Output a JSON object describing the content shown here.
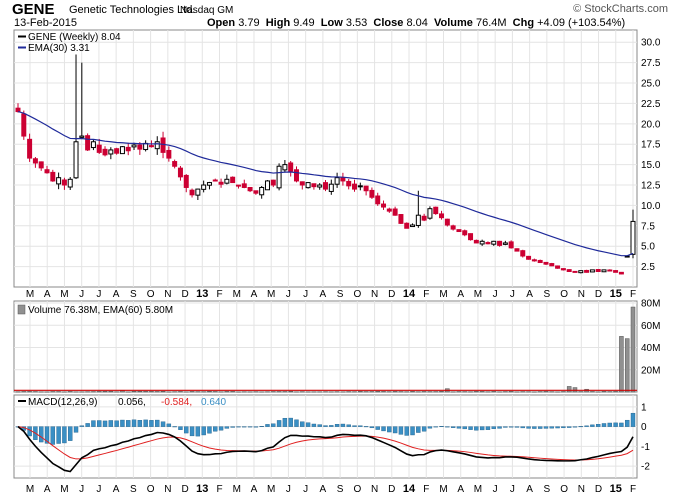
{
  "header": {
    "symbol": "GENE",
    "company": "Genetic Technologies Ltd.",
    "exchange": "Nasdaq GM",
    "brand": "© StockCharts.com",
    "date": "13-Feb-2015",
    "open_label": "Open",
    "open": "3.79",
    "high_label": "High",
    "high": "9.49",
    "low_label": "Low",
    "low": "3.53",
    "close_label": "Close",
    "close": "8.04",
    "volume_label": "Volume",
    "volume": "76.4M",
    "chg_label": "Chg",
    "chg": "+4.09 (+103.54%)"
  },
  "colors": {
    "up": "#000000",
    "down": "#cc0033",
    "ema": "#1f2a9a",
    "volume_bar": "#909090",
    "volume_baseline": "#cc0000",
    "macd_line": "#000000",
    "signal_line": "#e02020",
    "histogram": "#3a8fc4"
  },
  "chart_data": [
    {
      "type": "candlestick",
      "legend": [
        {
          "label": "GENE (Weekly) 8.04",
          "color": "#000000"
        },
        {
          "label": "EMA(30) 3.31",
          "color": "#1f2a9a"
        }
      ],
      "ylim": [
        0,
        31.5
      ],
      "yticks": [
        "2.5",
        "5.0",
        "7.5",
        "10.0",
        "12.5",
        "15.0",
        "17.5",
        "20.0",
        "22.5",
        "25.0",
        "27.5",
        "30.0"
      ],
      "xticks": [
        "M",
        "A",
        "M",
        "J",
        "J",
        "A",
        "S",
        "O",
        "N",
        "D",
        "13",
        "F",
        "M",
        "A",
        "M",
        "J",
        "J",
        "A",
        "S",
        "O",
        "N",
        "D",
        "14",
        "F",
        "M",
        "A",
        "M",
        "J",
        "J",
        "A",
        "S",
        "O",
        "N",
        "D",
        "15",
        "F"
      ],
      "close_anchors": [
        [
          0,
          21.5
        ],
        [
          1,
          18.5
        ],
        [
          2,
          15.8
        ],
        [
          3,
          15.2
        ],
        [
          4,
          14.6
        ],
        [
          5,
          14.0
        ],
        [
          6,
          13.0
        ],
        [
          7,
          13.4
        ],
        [
          8,
          12.5
        ],
        [
          9,
          13.2
        ],
        [
          10,
          17.8
        ],
        [
          11,
          18.5
        ],
        [
          12,
          16.8
        ],
        [
          13,
          17.8
        ],
        [
          14,
          16.5
        ],
        [
          15,
          16.2
        ],
        [
          16,
          16.8
        ],
        [
          17,
          16.4
        ],
        [
          18,
          17.2
        ],
        [
          19,
          16.7
        ],
        [
          20,
          17.4
        ],
        [
          21,
          16.9
        ],
        [
          22,
          17.6
        ],
        [
          23,
          17.2
        ],
        [
          24,
          17.8
        ],
        [
          25,
          16.5
        ],
        [
          26,
          15.8
        ],
        [
          27,
          14.8
        ],
        [
          28,
          13.5
        ],
        [
          29,
          12.2
        ],
        [
          30,
          11.3
        ],
        [
          31,
          12.0
        ],
        [
          32,
          12.5
        ],
        [
          33,
          12.8
        ],
        [
          34,
          13.1
        ],
        [
          35,
          12.6
        ],
        [
          36,
          13.2
        ],
        [
          37,
          12.8
        ],
        [
          38,
          12.4
        ],
        [
          39,
          12.2
        ],
        [
          40,
          11.8
        ],
        [
          41,
          11.5
        ],
        [
          42,
          12.2
        ],
        [
          43,
          13.0
        ],
        [
          44,
          12.5
        ],
        [
          45,
          14.8
        ],
        [
          46,
          15.0
        ],
        [
          47,
          14.2
        ],
        [
          48,
          13.0
        ],
        [
          49,
          12.5
        ],
        [
          50,
          12.8
        ],
        [
          51,
          12.3
        ],
        [
          52,
          12.5
        ],
        [
          53,
          12.0
        ],
        [
          54,
          12.6
        ],
        [
          55,
          13.4
        ],
        [
          56,
          13.0
        ],
        [
          57,
          12.4
        ],
        [
          58,
          12.0
        ],
        [
          59,
          12.4
        ],
        [
          60,
          11.8
        ],
        [
          61,
          11.0
        ],
        [
          62,
          10.2
        ],
        [
          63,
          9.8
        ],
        [
          64,
          9.3
        ],
        [
          65,
          8.8
        ],
        [
          66,
          7.8
        ],
        [
          67,
          7.2
        ],
        [
          68,
          7.6
        ],
        [
          69,
          8.8
        ],
        [
          70,
          8.2
        ],
        [
          71,
          9.6
        ],
        [
          72,
          9.0
        ],
        [
          73,
          8.5
        ],
        [
          74,
          7.6
        ],
        [
          75,
          7.1
        ],
        [
          76,
          6.8
        ],
        [
          77,
          6.4
        ],
        [
          78,
          5.8
        ],
        [
          79,
          5.4
        ],
        [
          80,
          5.6
        ],
        [
          81,
          5.3
        ],
        [
          82,
          5.6
        ],
        [
          83,
          5.1
        ],
        [
          84,
          5.4
        ],
        [
          85,
          4.8
        ],
        [
          86,
          4.4
        ],
        [
          87,
          3.8
        ],
        [
          88,
          3.4
        ],
        [
          89,
          3.2
        ],
        [
          90,
          3.0
        ],
        [
          91,
          2.8
        ],
        [
          92,
          2.6
        ],
        [
          93,
          2.3
        ],
        [
          94,
          2.1
        ],
        [
          95,
          1.9
        ],
        [
          96,
          1.8
        ],
        [
          97,
          2.0
        ],
        [
          98,
          1.8
        ],
        [
          99,
          2.1
        ],
        [
          100,
          1.9
        ],
        [
          101,
          2.1
        ],
        [
          102,
          2.0
        ],
        [
          103,
          1.8
        ],
        [
          104,
          1.6
        ],
        [
          105,
          3.79
        ],
        [
          106,
          8.04
        ]
      ],
      "series": [
        {
          "name": "GENE (Weekly)",
          "last": 8.04
        },
        {
          "name": "EMA(30)",
          "last": 3.31
        }
      ]
    },
    {
      "type": "bar",
      "legend": [
        {
          "label": "Volume 76.38M, EMA(60) 5.80M",
          "color": "#000000"
        }
      ],
      "ylim": [
        0,
        80
      ],
      "yticks": [
        "20M",
        "40M",
        "60M",
        "80M"
      ],
      "spikes": [
        [
          18,
          1.5
        ],
        [
          74,
          3.0
        ],
        [
          95,
          5.0
        ],
        [
          96,
          4.0
        ],
        [
          98,
          2.5
        ],
        [
          104,
          50.0
        ],
        [
          105,
          48.0
        ],
        [
          106,
          76.38
        ]
      ],
      "ema60_last": 5.8
    },
    {
      "type": "line",
      "legend": [
        {
          "label": "MACD(12,26,9)",
          "color": "#000000"
        },
        {
          "label": "0.056,",
          "color": "#000000"
        },
        {
          "label": "-0.584,",
          "color": "#e02020"
        },
        {
          "label": "0.640",
          "color": "#3a8fc4"
        }
      ],
      "ylim": [
        -2.6,
        1.6
      ],
      "yticks": [
        "1",
        "0",
        "-1",
        "-2"
      ],
      "series": [
        {
          "name": "MACD(12,26,9)",
          "last": 0.056
        },
        {
          "name": "Signal",
          "last": -0.584
        },
        {
          "name": "Histogram",
          "last": 0.64
        }
      ]
    }
  ]
}
